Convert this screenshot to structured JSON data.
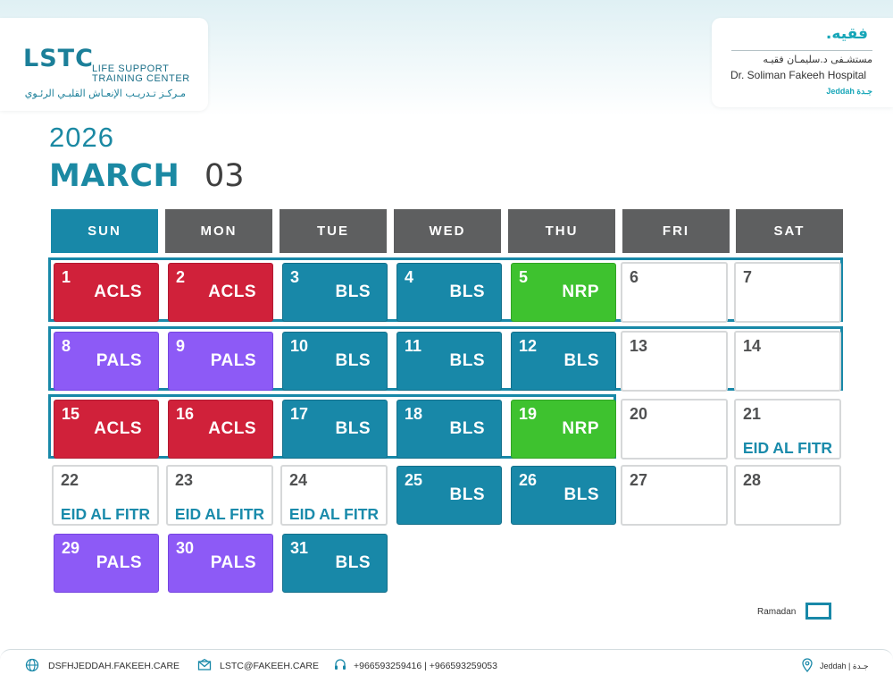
{
  "header": {
    "lstc": {
      "mark": "LSTC",
      "line1": "LIFE SUPPORT",
      "line2": "TRAINING CENTER",
      "arabic": "مـركـز تـدريـب الإنعـاش القلبـي الرئـوي"
    },
    "hospital": {
      "logo": "فقيه.",
      "arabic": "مستشـفى د.سليمـان فقيـه",
      "english": "Dr. Soliman Fakeeh Hospital",
      "city": "Jeddah جـدة"
    }
  },
  "calendar": {
    "year": "2026",
    "month": "MARCH",
    "month_number": "03",
    "weekdays": [
      "SUN",
      "MON",
      "TUE",
      "WED",
      "THU",
      "FRI",
      "SAT"
    ],
    "weeks": [
      [
        {
          "day": "1",
          "course": "ACLS",
          "kind": "acls"
        },
        {
          "day": "2",
          "course": "ACLS",
          "kind": "acls"
        },
        {
          "day": "3",
          "course": "BLS",
          "kind": "bls"
        },
        {
          "day": "4",
          "course": "BLS",
          "kind": "bls"
        },
        {
          "day": "5",
          "course": "NRP",
          "kind": "nrp"
        },
        {
          "day": "6",
          "course": "",
          "kind": "blank"
        },
        {
          "day": "7",
          "course": "",
          "kind": "blank"
        }
      ],
      [
        {
          "day": "8",
          "course": "PALS",
          "kind": "pals"
        },
        {
          "day": "9",
          "course": "PALS",
          "kind": "pals"
        },
        {
          "day": "10",
          "course": "BLS",
          "kind": "bls"
        },
        {
          "day": "11",
          "course": "BLS",
          "kind": "bls"
        },
        {
          "day": "12",
          "course": "BLS",
          "kind": "bls"
        },
        {
          "day": "13",
          "course": "",
          "kind": "blank"
        },
        {
          "day": "14",
          "course": "",
          "kind": "blank"
        }
      ],
      [
        {
          "day": "15",
          "course": "ACLS",
          "kind": "acls"
        },
        {
          "day": "16",
          "course": "ACLS",
          "kind": "acls"
        },
        {
          "day": "17",
          "course": "BLS",
          "kind": "bls"
        },
        {
          "day": "18",
          "course": "BLS",
          "kind": "bls"
        },
        {
          "day": "19",
          "course": "NRP",
          "kind": "nrp"
        },
        {
          "day": "20",
          "course": "",
          "kind": "blank"
        },
        {
          "day": "21",
          "course": "",
          "kind": "blank",
          "holiday": "EID AL FITR"
        }
      ],
      [
        {
          "day": "22",
          "course": "",
          "kind": "blank",
          "holiday": "EID AL FITR"
        },
        {
          "day": "23",
          "course": "",
          "kind": "blank",
          "holiday": "EID AL FITR"
        },
        {
          "day": "24",
          "course": "",
          "kind": "blank",
          "holiday": "EID AL FITR"
        },
        {
          "day": "25",
          "course": "BLS",
          "kind": "bls"
        },
        {
          "day": "26",
          "course": "BLS",
          "kind": "bls"
        },
        {
          "day": "27",
          "course": "",
          "kind": "blank"
        },
        {
          "day": "28",
          "course": "",
          "kind": "blank"
        }
      ],
      [
        {
          "day": "29",
          "course": "PALS",
          "kind": "pals"
        },
        {
          "day": "30",
          "course": "PALS",
          "kind": "pals"
        },
        {
          "day": "31",
          "course": "BLS",
          "kind": "bls"
        }
      ]
    ],
    "ramadan_outlined_weeks": [
      1,
      2,
      3
    ],
    "legend": {
      "label": "Ramadan",
      "color": "#1888a8"
    }
  },
  "colors": {
    "acls": "#d0213a",
    "bls": "#1888a8",
    "nrp": "#3ec22f",
    "pals": "#8d5af6",
    "header_dark": "#5e5f60",
    "accent": "#1888a8"
  },
  "footer": {
    "website": "DSFHJEDDAH.FAKEEH.CARE",
    "website_icon": "globe-icon",
    "email": "LSTC@FAKEEH.CARE",
    "email_icon": "email-icon",
    "phones": "+966593259416 | +966593259053",
    "phone_icon": "headset-icon",
    "location": "Jeddah | جـدة",
    "location_icon": "location-pin-icon"
  }
}
